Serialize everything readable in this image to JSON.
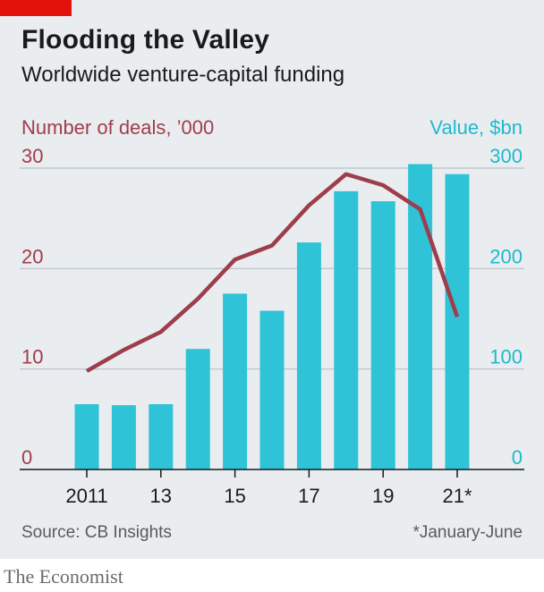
{
  "header": {
    "title": "Flooding the Valley",
    "subtitle": "Worldwide venture-capital funding"
  },
  "chart_data": {
    "type": "bar",
    "title": "Flooding the Valley",
    "subtitle": "Worldwide venture-capital funding",
    "x": [
      "2011",
      "2012",
      "2013",
      "2014",
      "2015",
      "2016",
      "2017",
      "2018",
      "2019",
      "2020",
      "2021*"
    ],
    "x_tick_labels": [
      "2011",
      "13",
      "15",
      "17",
      "19",
      "21*"
    ],
    "x_tick_positions": [
      "2011",
      "2013",
      "2015",
      "2017",
      "2019",
      "2021*"
    ],
    "left_axis": {
      "label": "Number of deals, ’000",
      "ylim": [
        0,
        30
      ],
      "ticks": [
        0,
        10,
        20,
        30
      ]
    },
    "right_axis": {
      "label": "Value, $bn",
      "ylim": [
        0,
        300
      ],
      "ticks": [
        0,
        100,
        200,
        300
      ]
    },
    "series": [
      {
        "type": "bar",
        "axis": "right",
        "color": "#2ec3d6",
        "values": [
          65,
          64,
          65,
          120,
          175,
          158,
          226,
          277,
          267,
          304,
          294
        ]
      },
      {
        "type": "line",
        "axis": "left",
        "color": "#9e3d4b",
        "values": [
          9.8,
          11.9,
          13.7,
          17.0,
          20.9,
          22.3,
          26.3,
          29.4,
          28.3,
          25.9,
          15.2
        ]
      }
    ],
    "grid": true,
    "source": "Source: CB Insights",
    "footnote": "*January-June"
  },
  "footer": {
    "source": "Source: CB Insights",
    "footnote": "*January-June",
    "brand": "The Economist"
  },
  "colors": {
    "accent": "#e3120b",
    "bars": "#2ec3d6",
    "line": "#9e3d4b",
    "left_axis_text": "#a13d4a",
    "right_axis_text": "#1fb9cf",
    "grid": "#b7c1c8",
    "background": "#e9edf0"
  }
}
